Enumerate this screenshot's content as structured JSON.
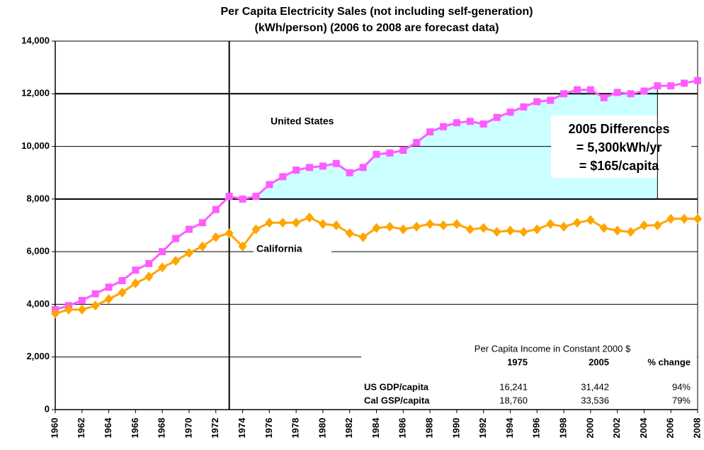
{
  "chart_data": {
    "type": "line",
    "title": [
      "Per Capita Electricity Sales (not including self-generation)",
      "(kWh/person) (2006 to 2008 are forecast data)"
    ],
    "x": [
      1960,
      1961,
      1962,
      1963,
      1964,
      1965,
      1966,
      1967,
      1968,
      1969,
      1970,
      1971,
      1972,
      1973,
      1974,
      1975,
      1976,
      1977,
      1978,
      1979,
      1980,
      1981,
      1982,
      1983,
      1984,
      1985,
      1986,
      1987,
      1988,
      1989,
      1990,
      1991,
      1992,
      1993,
      1994,
      1995,
      1996,
      1997,
      1998,
      1999,
      2000,
      2001,
      2002,
      2003,
      2004,
      2005,
      2006,
      2007,
      2008
    ],
    "xlim": [
      1960,
      2008
    ],
    "xticks": [
      1960,
      1962,
      1964,
      1966,
      1968,
      1970,
      1972,
      1974,
      1976,
      1978,
      1980,
      1982,
      1984,
      1986,
      1988,
      1990,
      1992,
      1994,
      1996,
      1998,
      2000,
      2002,
      2004,
      2006,
      2008
    ],
    "ylim": [
      0,
      14000
    ],
    "yticks": [
      0,
      {
        "value": 2000,
        "label": "2,000"
      },
      {
        "value": 4000,
        "label": "4,000"
      },
      {
        "value": 6000,
        "label": "6,000"
      },
      {
        "value": 8000,
        "label": "8,000"
      },
      {
        "value": 10000,
        "label": "10,000"
      },
      {
        "value": 12000,
        "label": "12,000"
      },
      {
        "value": 14000,
        "label": "14,000"
      }
    ],
    "grid": true,
    "series": [
      {
        "name": "United States",
        "color": "#ff5cff",
        "marker": "square",
        "values": [
          3800,
          3950,
          4150,
          4400,
          4650,
          4900,
          5300,
          5550,
          6000,
          6500,
          6850,
          7100,
          7600,
          8100,
          8000,
          8100,
          8550,
          8850,
          9100,
          9200,
          9250,
          9350,
          9000,
          9200,
          9700,
          9750,
          9850,
          10150,
          10550,
          10750,
          10900,
          10950,
          10850,
          11100,
          11300,
          11500,
          11700,
          11750,
          12000,
          12150,
          12150,
          11850,
          12050,
          12000,
          12100,
          12300,
          12300,
          12400,
          12500
        ]
      },
      {
        "name": "California",
        "color": "#ffa500",
        "marker": "diamond",
        "values": [
          3650,
          3800,
          3800,
          3950,
          4200,
          4450,
          4800,
          5050,
          5400,
          5650,
          5950,
          6200,
          6550,
          6700,
          6200,
          6850,
          7100,
          7100,
          7100,
          7300,
          7050,
          7000,
          6700,
          6550,
          6900,
          6950,
          6850,
          6950,
          7050,
          7000,
          7050,
          6850,
          6900,
          6750,
          6800,
          6750,
          6850,
          7050,
          6950,
          7100,
          7200,
          6900,
          6800,
          6750,
          7000,
          7000,
          7250,
          7250,
          7250
        ]
      }
    ],
    "annotations": [
      "2005 Differences",
      "= 5,300kWh/yr",
      "= $165/capita"
    ],
    "area_color": "#ccffff"
  },
  "table": {
    "title": "Per Capita Income in Constant 2000 $",
    "header": [
      "1975",
      "2005",
      "% change"
    ],
    "rows": [
      [
        "US GDP/capita",
        "16,241",
        "31,442",
        "94%"
      ],
      [
        "Cal GSP/capita",
        "18,760",
        "33,536",
        "79%"
      ]
    ]
  }
}
